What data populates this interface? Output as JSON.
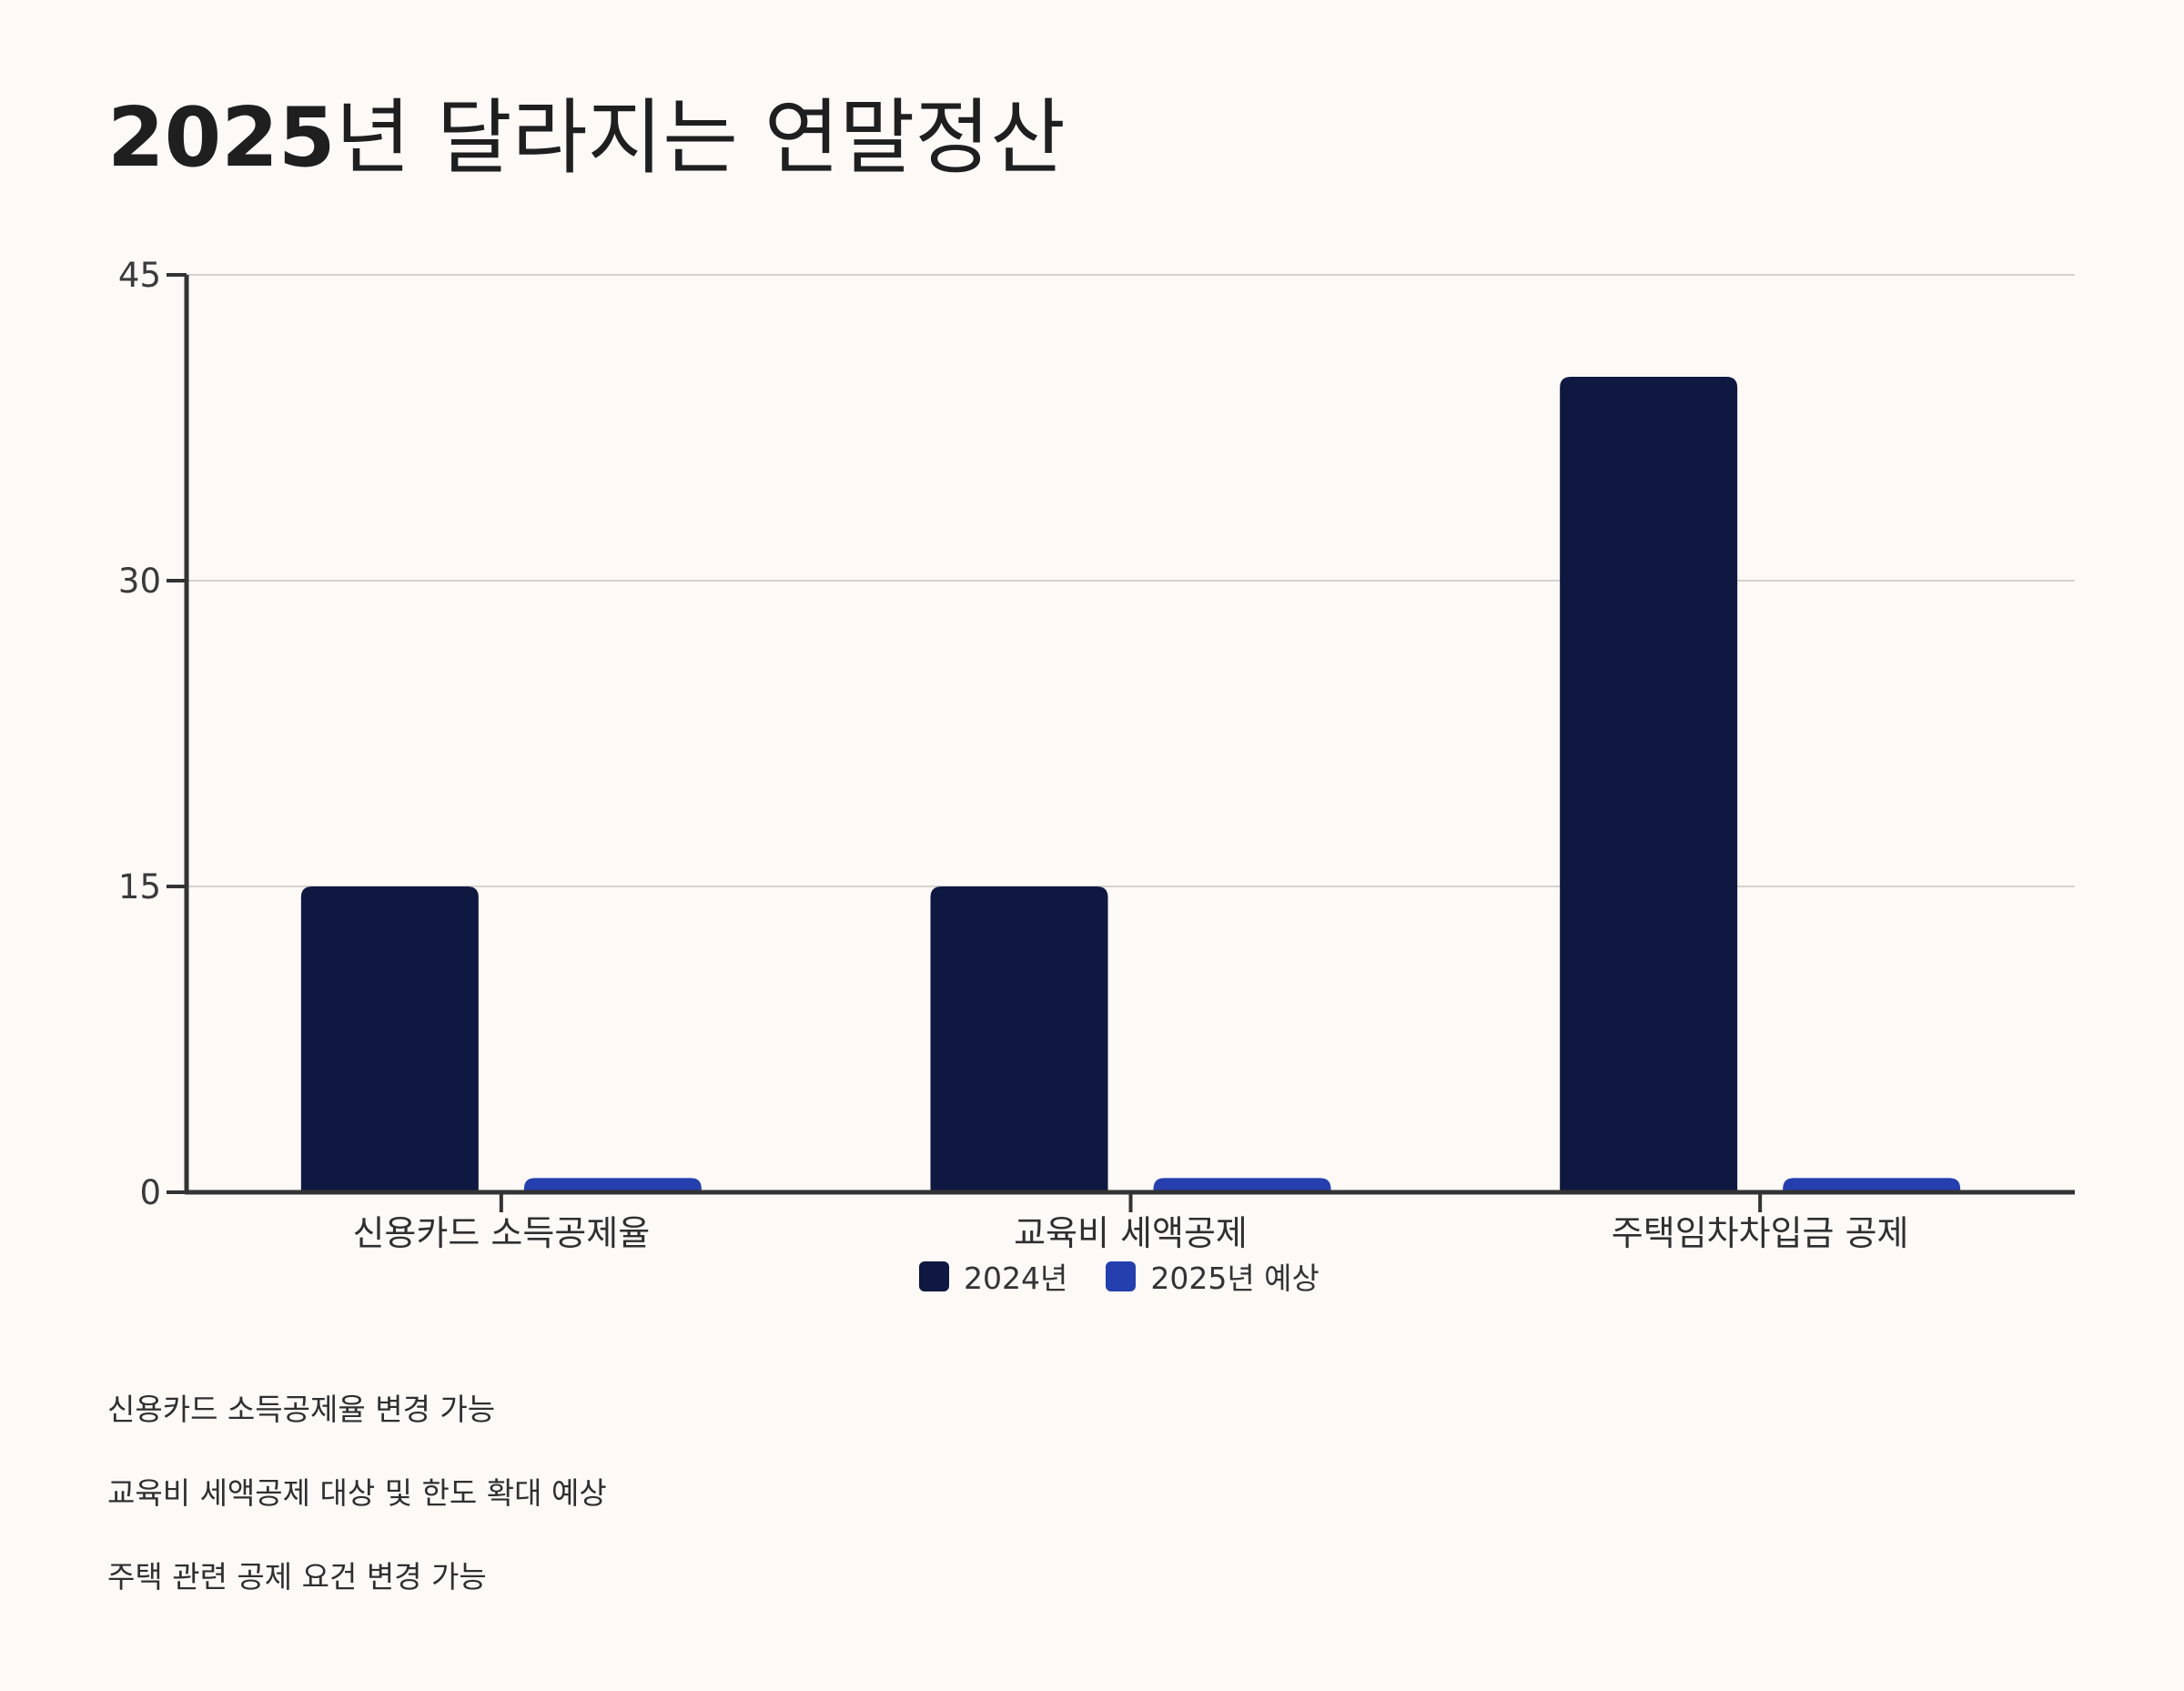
{
  "page": {
    "title_year": "2025",
    "title_rest": "년 달라지는 연말정산"
  },
  "colors": {
    "background": "#fdf9f7",
    "series_2024": "#0f1840",
    "series_2025": "#253fae",
    "axis": "#333333",
    "grid": "#d4d2d1"
  },
  "chart_data": {
    "type": "bar",
    "categories": [
      "신용카드 소득공제율",
      "교육비 세액공제",
      "주택임차차입금 공제"
    ],
    "series": [
      {
        "name": "2024년",
        "values": [
          15,
          15,
          40
        ],
        "color": "#0f1840"
      },
      {
        "name": "2025년 예상",
        "values": [
          0.7,
          0.7,
          0.7
        ],
        "color": "#253fae"
      }
    ],
    "yticks": [
      "0",
      "15",
      "30",
      "45"
    ],
    "ylim": [
      0,
      45
    ],
    "grid": true,
    "legend_position": "bottom-center"
  },
  "notes": [
    "신용카드 소득공제율 변경 가능",
    "교육비 세액공제 대상 및 한도 확대 예상",
    "주택 관련 공제 요건 변경 가능"
  ]
}
